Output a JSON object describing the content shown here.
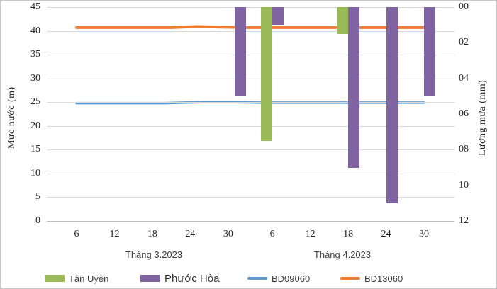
{
  "chart_data": {
    "type": "combo-bar-line-dual-axis",
    "left_axis": {
      "title": "Mực nước (m)",
      "min": 0,
      "max": 45,
      "tick_step": 5,
      "ticks": [
        45,
        40,
        35,
        30,
        25,
        20,
        15,
        10,
        5,
        0
      ]
    },
    "right_axis": {
      "title": "Lượng mưa (mm)",
      "min": 0,
      "max": 12,
      "inverted_downward": true,
      "tick_labels": [
        "00",
        "02",
        "04",
        "06",
        "08",
        "10",
        "12"
      ]
    },
    "x_axis": {
      "months": [
        {
          "label": "Tháng 3.2023",
          "month": 3,
          "ticks": [
            6,
            12,
            18,
            24,
            30
          ]
        },
        {
          "label": "Tháng 4.2023",
          "month": 4,
          "ticks": [
            6,
            12,
            18,
            24,
            30
          ]
        }
      ]
    },
    "bar_series": [
      {
        "name": "Tân Uyên",
        "color": "#9BBB59",
        "align": "left",
        "unit": "mm (rain, hangs from top on inverted right axis)",
        "points": [
          {
            "month": 4,
            "day": 6,
            "mm": 7.5
          },
          {
            "month": 4,
            "day": 18,
            "mm": 1.5
          }
        ]
      },
      {
        "name": "Phước Hòa",
        "color": "#8064A2",
        "align": "right",
        "unit": "mm (rain, hangs from top on inverted right axis)",
        "points": [
          {
            "month": 3,
            "day": 31,
            "mm": 5.0
          },
          {
            "month": 4,
            "day": 6,
            "mm": 1.0
          },
          {
            "month": 4,
            "day": 18,
            "mm": 9.0
          },
          {
            "month": 4,
            "day": 24,
            "mm": 11.0
          },
          {
            "month": 4,
            "day": 30,
            "mm": 5.0
          }
        ]
      }
    ],
    "line_series": [
      {
        "name": "BD09060",
        "color": "#5B9BD5",
        "width": 3.5,
        "unit": "m (water level, left axis)",
        "points": [
          {
            "month": 3,
            "day": 6,
            "m": 24.8
          },
          {
            "month": 3,
            "day": 20,
            "m": 24.8
          },
          {
            "month": 3,
            "day": 26,
            "m": 25.0
          },
          {
            "month": 3,
            "day": 31,
            "m": 25.0
          },
          {
            "month": 4,
            "day": 4,
            "m": 24.9
          },
          {
            "month": 4,
            "day": 30,
            "m": 24.9
          }
        ]
      },
      {
        "name": "BD13060",
        "color": "#ED7D31",
        "width": 4,
        "unit": "m (water level, left axis)",
        "points": [
          {
            "month": 3,
            "day": 6,
            "m": 40.7
          },
          {
            "month": 3,
            "day": 21,
            "m": 40.7
          },
          {
            "month": 3,
            "day": 25,
            "m": 40.9
          },
          {
            "month": 3,
            "day": 29,
            "m": 40.8
          },
          {
            "month": 4,
            "day": 2,
            "m": 40.7
          },
          {
            "month": 4,
            "day": 30,
            "m": 40.7
          }
        ]
      }
    ],
    "legend": [
      {
        "label": "Tân Uyên",
        "color": "#9BBB59",
        "swatch": "rect"
      },
      {
        "label": "Phước Hòa",
        "color": "#8064A2",
        "swatch": "rect"
      },
      {
        "label": "BD09060",
        "color": "#5B9BD5",
        "swatch": "line"
      },
      {
        "label": "BD13060",
        "color": "#ED7D31",
        "swatch": "line"
      }
    ],
    "layout_hints": {
      "gridlines": "horizontal only, light gray",
      "legend_position": "bottom, single row",
      "bars_baseline": "top of plot (rain axis inverted)"
    }
  }
}
